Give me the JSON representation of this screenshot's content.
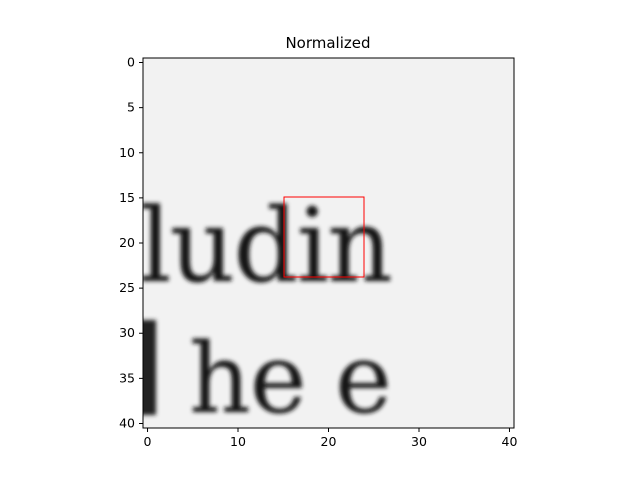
{
  "chart_data": {
    "type": "heatmap",
    "title": "Normalized",
    "xlabel": "",
    "ylabel": "",
    "xlim": [
      -0.5,
      40.5
    ],
    "ylim": [
      40.5,
      -0.5
    ],
    "xticks": [
      0,
      10,
      20,
      30,
      40
    ],
    "yticks": [
      0,
      5,
      10,
      15,
      20,
      25,
      30,
      35,
      40
    ],
    "colormap": "gray",
    "grid": false,
    "text_rows": [
      {
        "text": "ludin",
        "ink_rows": [
          17,
          24
        ],
        "partial_left": true,
        "partial_right": true
      },
      {
        "text": "he e",
        "ink_rows": [
          31,
          40
        ],
        "partial_left": true,
        "partial_right": true
      }
    ],
    "highlight_box": {
      "x0": 15,
      "x1": 24,
      "y0": 15,
      "y1": 24,
      "color": "#ff0000"
    }
  },
  "colors": {
    "background": "#f2f2f2",
    "ink": "#151515",
    "axes": "#000000"
  }
}
